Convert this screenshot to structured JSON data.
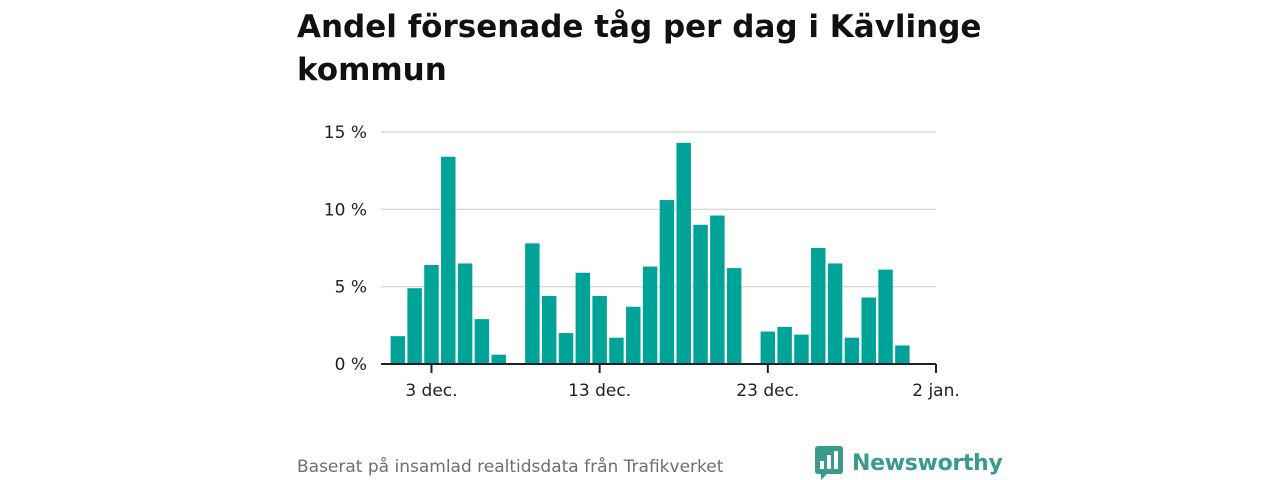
{
  "header": {
    "title": "Andel försenade tåg per dag i Kävlinge kommun"
  },
  "footer": {
    "source": "Baserat på insamlad realtidsdata från Trafikverket",
    "brand": "Newsworthy",
    "brand_color": "#3a9a8c",
    "brand_icon": "bar-chart-speech-bubble-icon"
  },
  "chart_data": {
    "type": "bar",
    "title": "Andel försenade tåg per dag i Kävlinge kommun",
    "xlabel": "",
    "ylabel": "",
    "bar_color": "#00a397",
    "grid": true,
    "legend": "none",
    "ylim": [
      0,
      15
    ],
    "y_ticks": [
      {
        "value": 0,
        "label": "0 %"
      },
      {
        "value": 5,
        "label": "5 %"
      },
      {
        "value": 10,
        "label": "10 %"
      },
      {
        "value": 15,
        "label": "15 %"
      }
    ],
    "x_ticks": [
      {
        "date": "2023-12-03",
        "label": "3 dec."
      },
      {
        "date": "2023-12-13",
        "label": "13 dec."
      },
      {
        "date": "2023-12-23",
        "label": "23 dec."
      },
      {
        "date": "2024-01-02",
        "label": "2 jan."
      }
    ],
    "xlim": [
      "2023-11-30",
      "2024-01-02"
    ],
    "x": [
      "2023-12-01",
      "2023-12-02",
      "2023-12-03",
      "2023-12-04",
      "2023-12-05",
      "2023-12-06",
      "2023-12-07",
      "2023-12-08",
      "2023-12-09",
      "2023-12-10",
      "2023-12-11",
      "2023-12-12",
      "2023-12-13",
      "2023-12-14",
      "2023-12-15",
      "2023-12-16",
      "2023-12-17",
      "2023-12-18",
      "2023-12-19",
      "2023-12-20",
      "2023-12-21",
      "2023-12-22",
      "2023-12-23",
      "2023-12-24",
      "2023-12-25",
      "2023-12-26",
      "2023-12-27",
      "2023-12-28",
      "2023-12-29",
      "2023-12-30",
      "2023-12-31",
      "2024-01-01"
    ],
    "values": [
      1.8,
      4.9,
      6.4,
      13.4,
      6.5,
      2.9,
      0.6,
      0,
      7.8,
      4.4,
      2.0,
      5.9,
      4.4,
      1.7,
      3.7,
      6.3,
      10.6,
      14.3,
      9.0,
      9.6,
      6.2,
      0,
      2.1,
      2.4,
      1.9,
      7.5,
      6.5,
      1.7,
      4.3,
      6.1,
      1.2,
      0
    ]
  }
}
